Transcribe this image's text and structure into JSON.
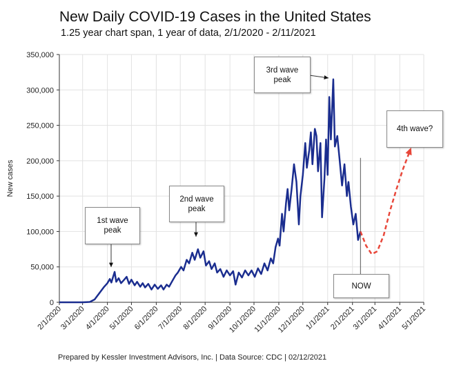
{
  "chart_data": {
    "type": "line",
    "title": "New Daily COVID-19 Cases in the United States",
    "subtitle": "1.25 year chart span, 1 year of data, 2/1/2020 - 2/11/2021",
    "xlabel": "",
    "ylabel": "New cases",
    "ylim": [
      0,
      350000
    ],
    "xlim": [
      "2020-02-01",
      "2021-05-01"
    ],
    "grid": true,
    "y_ticks": [
      "0",
      "50,000",
      "100,000",
      "150,000",
      "200,000",
      "250,000",
      "300,000",
      "350,000"
    ],
    "x_ticks": [
      "2/1/2020",
      "3/1/2020",
      "4/1/2020",
      "5/1/2020",
      "6/1/2020",
      "7/1/2020",
      "8/1/2020",
      "9/1/2020",
      "10/1/2020",
      "11/1/2020",
      "12/1/2020",
      "1/1/2021",
      "2/1/2021",
      "3/1/2021",
      "4/1/2021",
      "5/1/2021"
    ],
    "series": [
      {
        "color": "#1a2d8f",
        "style": "solid",
        "points": [
          [
            "2020-02-01",
            0
          ],
          [
            "2020-03-01",
            0
          ],
          [
            "2020-03-10",
            500
          ],
          [
            "2020-03-16",
            4000
          ],
          [
            "2020-03-20",
            10000
          ],
          [
            "2020-03-24",
            16000
          ],
          [
            "2020-03-28",
            22000
          ],
          [
            "2020-04-01",
            27000
          ],
          [
            "2020-04-04",
            33000
          ],
          [
            "2020-04-06",
            28000
          ],
          [
            "2020-04-10",
            43000
          ],
          [
            "2020-04-12",
            29000
          ],
          [
            "2020-04-15",
            34000
          ],
          [
            "2020-04-18",
            27000
          ],
          [
            "2020-04-22",
            32000
          ],
          [
            "2020-04-25",
            36000
          ],
          [
            "2020-04-28",
            26000
          ],
          [
            "2020-05-01",
            32000
          ],
          [
            "2020-05-05",
            24000
          ],
          [
            "2020-05-08",
            29000
          ],
          [
            "2020-05-12",
            22000
          ],
          [
            "2020-05-15",
            27000
          ],
          [
            "2020-05-18",
            21000
          ],
          [
            "2020-05-22",
            26000
          ],
          [
            "2020-05-26",
            18000
          ],
          [
            "2020-05-30",
            25000
          ],
          [
            "2020-06-03",
            19000
          ],
          [
            "2020-06-07",
            24000
          ],
          [
            "2020-06-10",
            18000
          ],
          [
            "2020-06-14",
            25000
          ],
          [
            "2020-06-17",
            22000
          ],
          [
            "2020-06-21",
            30000
          ],
          [
            "2020-06-25",
            38000
          ],
          [
            "2020-06-28",
            42000
          ],
          [
            "2020-07-02",
            50000
          ],
          [
            "2020-07-05",
            45000
          ],
          [
            "2020-07-09",
            60000
          ],
          [
            "2020-07-12",
            55000
          ],
          [
            "2020-07-16",
            70000
          ],
          [
            "2020-07-19",
            60000
          ],
          [
            "2020-07-23",
            75000
          ],
          [
            "2020-07-26",
            63000
          ],
          [
            "2020-07-30",
            72000
          ],
          [
            "2020-08-02",
            52000
          ],
          [
            "2020-08-06",
            58000
          ],
          [
            "2020-08-09",
            47000
          ],
          [
            "2020-08-13",
            55000
          ],
          [
            "2020-08-16",
            42000
          ],
          [
            "2020-08-20",
            47000
          ],
          [
            "2020-08-24",
            36000
          ],
          [
            "2020-08-28",
            45000
          ],
          [
            "2020-09-01",
            38000
          ],
          [
            "2020-09-05",
            44000
          ],
          [
            "2020-09-08",
            25000
          ],
          [
            "2020-09-12",
            42000
          ],
          [
            "2020-09-16",
            35000
          ],
          [
            "2020-09-20",
            45000
          ],
          [
            "2020-09-24",
            38000
          ],
          [
            "2020-09-28",
            45000
          ],
          [
            "2020-10-02",
            36000
          ],
          [
            "2020-10-06",
            48000
          ],
          [
            "2020-10-10",
            40000
          ],
          [
            "2020-10-14",
            55000
          ],
          [
            "2020-10-18",
            45000
          ],
          [
            "2020-10-22",
            62000
          ],
          [
            "2020-10-25",
            55000
          ],
          [
            "2020-10-28",
            78000
          ],
          [
            "2020-10-31",
            90000
          ],
          [
            "2020-11-02",
            80000
          ],
          [
            "2020-11-05",
            125000
          ],
          [
            "2020-11-07",
            100000
          ],
          [
            "2020-11-10",
            140000
          ],
          [
            "2020-11-12",
            160000
          ],
          [
            "2020-11-14",
            130000
          ],
          [
            "2020-11-17",
            160000
          ],
          [
            "2020-11-20",
            195000
          ],
          [
            "2020-11-23",
            170000
          ],
          [
            "2020-11-26",
            110000
          ],
          [
            "2020-11-28",
            150000
          ],
          [
            "2020-12-01",
            180000
          ],
          [
            "2020-12-04",
            225000
          ],
          [
            "2020-12-06",
            190000
          ],
          [
            "2020-12-09",
            215000
          ],
          [
            "2020-12-11",
            240000
          ],
          [
            "2020-12-13",
            195000
          ],
          [
            "2020-12-16",
            245000
          ],
          [
            "2020-12-18",
            235000
          ],
          [
            "2020-12-20",
            185000
          ],
          [
            "2020-12-23",
            225000
          ],
          [
            "2020-12-25",
            120000
          ],
          [
            "2020-12-28",
            175000
          ],
          [
            "2020-12-30",
            230000
          ],
          [
            "2021-01-01",
            180000
          ],
          [
            "2021-01-03",
            290000
          ],
          [
            "2021-01-05",
            230000
          ],
          [
            "2021-01-08",
            315000
          ],
          [
            "2021-01-10",
            220000
          ],
          [
            "2021-01-13",
            235000
          ],
          [
            "2021-01-16",
            200000
          ],
          [
            "2021-01-19",
            165000
          ],
          [
            "2021-01-22",
            195000
          ],
          [
            "2021-01-25",
            150000
          ],
          [
            "2021-01-27",
            170000
          ],
          [
            "2021-01-30",
            135000
          ],
          [
            "2021-02-02",
            110000
          ],
          [
            "2021-02-05",
            125000
          ],
          [
            "2021-02-08",
            88000
          ],
          [
            "2021-02-11",
            100000
          ]
        ]
      },
      {
        "color": "#e8473a",
        "style": "dashed",
        "points": [
          [
            "2021-02-11",
            100000
          ],
          [
            "2021-02-18",
            80000
          ],
          [
            "2021-02-25",
            68000
          ],
          [
            "2021-03-04",
            72000
          ],
          [
            "2021-03-12",
            95000
          ],
          [
            "2021-03-20",
            130000
          ],
          [
            "2021-03-28",
            160000
          ],
          [
            "2021-04-05",
            188000
          ],
          [
            "2021-04-14",
            215000
          ]
        ]
      }
    ],
    "annotations": [
      {
        "text": "1st wave peak",
        "date": "2020-04-10",
        "value": 43000
      },
      {
        "text": "2nd wave peak",
        "date": "2020-07-23",
        "value": 75000
      },
      {
        "text": "3rd wave peak",
        "date": "2021-01-08",
        "value": 315000
      },
      {
        "text": "4th wave?"
      },
      {
        "text": "NOW",
        "date": "2021-02-11"
      }
    ]
  },
  "footer": "Prepared by Kessler Investment Advisors, Inc. | Data Source: CDC | 02/12/2021"
}
